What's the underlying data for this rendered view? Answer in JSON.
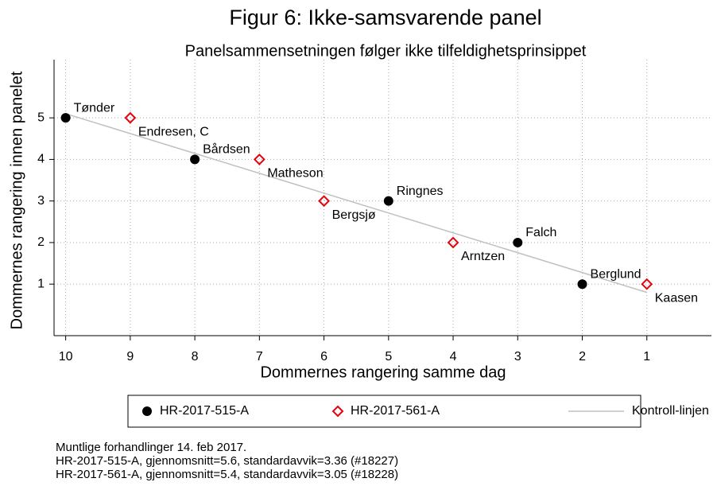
{
  "chart_data": {
    "type": "scatter",
    "title": "Figur 6: Ikke-samsvarende panel",
    "subtitle": "Panelsammensetningen følger ikke tilfeldighetsprinsippet",
    "x_label": "Dommernes rangering samme dag",
    "y_label": "Dommernes rangering innen panelet",
    "xlim": [
      10.18,
      0
    ],
    "xticks": [
      10,
      9,
      8,
      7,
      6,
      5,
      4,
      3,
      2,
      1
    ],
    "ylim": [
      -0.24,
      6.4
    ],
    "yticks": [
      1,
      2,
      3,
      4,
      5
    ],
    "grid": true,
    "legend": "bottom",
    "series": [
      {
        "name": "HR-2017-515-A",
        "color": "#000000",
        "marker": "circle",
        "x": [
          10,
          8,
          5,
          3,
          2
        ],
        "values": [
          5,
          4,
          3,
          2,
          1
        ],
        "labels": [
          "Tønder",
          "Bårdsen",
          "Ringnes",
          "Falch",
          "Berglund"
        ]
      },
      {
        "name": "HR-2017-561-A",
        "color": "#e8000b",
        "marker": "diamond",
        "x": [
          9,
          7,
          6,
          4,
          1
        ],
        "values": [
          5,
          4,
          3,
          2,
          1
        ],
        "labels": [
          "Endresen, C",
          "Matheson",
          "Bergsjø",
          "Arntzen",
          "Kaasen"
        ]
      },
      {
        "name": "Kontroll-linjen",
        "color": "#c0c0c0",
        "marker": "line",
        "x": [
          10,
          1
        ],
        "values": [
          5.1,
          0.8
        ]
      }
    ],
    "notes": [
      "Muntlige forhandlinger 14. feb 2017.",
      "HR-2017-515-A, gjennomsnitt=5.6, standardavvik=3.36 (#18227)",
      "HR-2017-561-A, gjennomsnitt=5.4, standardavvik=3.05 (#18228)"
    ]
  }
}
